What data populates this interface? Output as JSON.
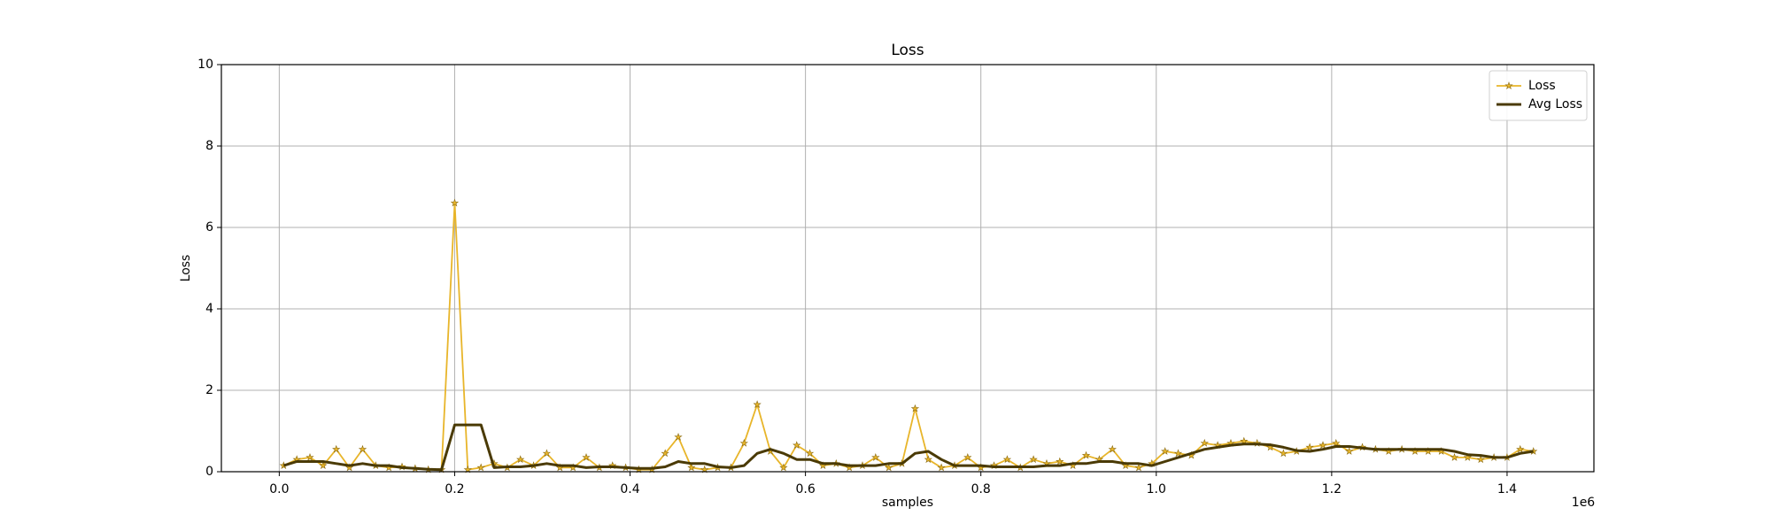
{
  "chart_data": {
    "type": "line",
    "title": "Loss",
    "x_label": "samples",
    "y_label": "Loss",
    "x_offset_label": "1e6",
    "x": [
      5000,
      20000,
      35000,
      50000,
      65000,
      80000,
      95000,
      110000,
      125000,
      140000,
      155000,
      170000,
      185000,
      200000,
      215000,
      230000,
      245000,
      260000,
      275000,
      290000,
      305000,
      320000,
      335000,
      350000,
      365000,
      380000,
      395000,
      410000,
      425000,
      440000,
      455000,
      470000,
      485000,
      500000,
      515000,
      530000,
      545000,
      560000,
      575000,
      590000,
      605000,
      620000,
      635000,
      650000,
      665000,
      680000,
      695000,
      710000,
      725000,
      740000,
      755000,
      770000,
      785000,
      800000,
      815000,
      830000,
      845000,
      860000,
      875000,
      890000,
      905000,
      920000,
      935000,
      950000,
      965000,
      980000,
      995000,
      1010000,
      1025000,
      1040000,
      1055000,
      1070000,
      1085000,
      1100000,
      1115000,
      1130000,
      1145000,
      1160000,
      1175000,
      1190000,
      1205000,
      1220000,
      1235000,
      1250000,
      1265000,
      1280000,
      1295000,
      1310000,
      1325000,
      1340000,
      1355000,
      1370000,
      1385000,
      1400000,
      1415000,
      1430000
    ],
    "series": [
      {
        "name": "Loss",
        "color": "#e8b52a",
        "marker": "star",
        "values": [
          0.15,
          0.3,
          0.35,
          0.15,
          0.55,
          0.1,
          0.55,
          0.15,
          0.1,
          0.12,
          0.08,
          0.05,
          0.05,
          6.6,
          0.05,
          0.1,
          0.2,
          0.1,
          0.3,
          0.15,
          0.45,
          0.1,
          0.1,
          0.35,
          0.1,
          0.15,
          0.1,
          0.05,
          0.05,
          0.45,
          0.85,
          0.1,
          0.05,
          0.1,
          0.1,
          0.7,
          1.65,
          0.5,
          0.1,
          0.65,
          0.45,
          0.15,
          0.2,
          0.1,
          0.15,
          0.35,
          0.1,
          0.2,
          1.55,
          0.3,
          0.1,
          0.15,
          0.35,
          0.1,
          0.15,
          0.3,
          0.1,
          0.3,
          0.2,
          0.25,
          0.15,
          0.4,
          0.3,
          0.55,
          0.15,
          0.1,
          0.2,
          0.5,
          0.45,
          0.4,
          0.7,
          0.65,
          0.7,
          0.75,
          0.7,
          0.6,
          0.45,
          0.5,
          0.6,
          0.65,
          0.7,
          0.5,
          0.6,
          0.55,
          0.5,
          0.55,
          0.5,
          0.5,
          0.5,
          0.35,
          0.35,
          0.3,
          0.35,
          0.35,
          0.55,
          0.5
        ]
      },
      {
        "name": "Avg Loss",
        "color": "#4a3a05",
        "values": [
          0.15,
          0.25,
          0.25,
          0.25,
          0.2,
          0.15,
          0.2,
          0.15,
          0.15,
          0.1,
          0.08,
          0.06,
          0.05,
          1.15,
          1.15,
          1.15,
          0.1,
          0.12,
          0.12,
          0.15,
          0.2,
          0.15,
          0.15,
          0.1,
          0.12,
          0.12,
          0.1,
          0.08,
          0.08,
          0.12,
          0.25,
          0.2,
          0.2,
          0.12,
          0.1,
          0.15,
          0.45,
          0.55,
          0.45,
          0.3,
          0.3,
          0.2,
          0.2,
          0.15,
          0.15,
          0.15,
          0.2,
          0.2,
          0.45,
          0.5,
          0.3,
          0.15,
          0.15,
          0.15,
          0.12,
          0.12,
          0.12,
          0.12,
          0.15,
          0.15,
          0.2,
          0.2,
          0.25,
          0.25,
          0.2,
          0.2,
          0.15,
          0.25,
          0.35,
          0.45,
          0.55,
          0.6,
          0.65,
          0.68,
          0.68,
          0.66,
          0.6,
          0.52,
          0.5,
          0.55,
          0.62,
          0.62,
          0.58,
          0.55,
          0.55,
          0.55,
          0.55,
          0.55,
          0.55,
          0.5,
          0.42,
          0.4,
          0.35,
          0.35,
          0.45,
          0.5
        ]
      }
    ],
    "xlim": [
      -66000,
      1499000
    ],
    "ylim": [
      0,
      10
    ],
    "xticks": [
      {
        "value": 0,
        "label": "0.0"
      },
      {
        "value": 200000,
        "label": "0.2"
      },
      {
        "value": 400000,
        "label": "0.4"
      },
      {
        "value": 600000,
        "label": "0.6"
      },
      {
        "value": 800000,
        "label": "0.8"
      },
      {
        "value": 1000000,
        "label": "1.0"
      },
      {
        "value": 1200000,
        "label": "1.2"
      },
      {
        "value": 1400000,
        "label": "1.4"
      }
    ],
    "yticks": [
      0,
      2,
      4,
      6,
      8,
      10
    ],
    "grid": true,
    "legend": "upper-right"
  }
}
